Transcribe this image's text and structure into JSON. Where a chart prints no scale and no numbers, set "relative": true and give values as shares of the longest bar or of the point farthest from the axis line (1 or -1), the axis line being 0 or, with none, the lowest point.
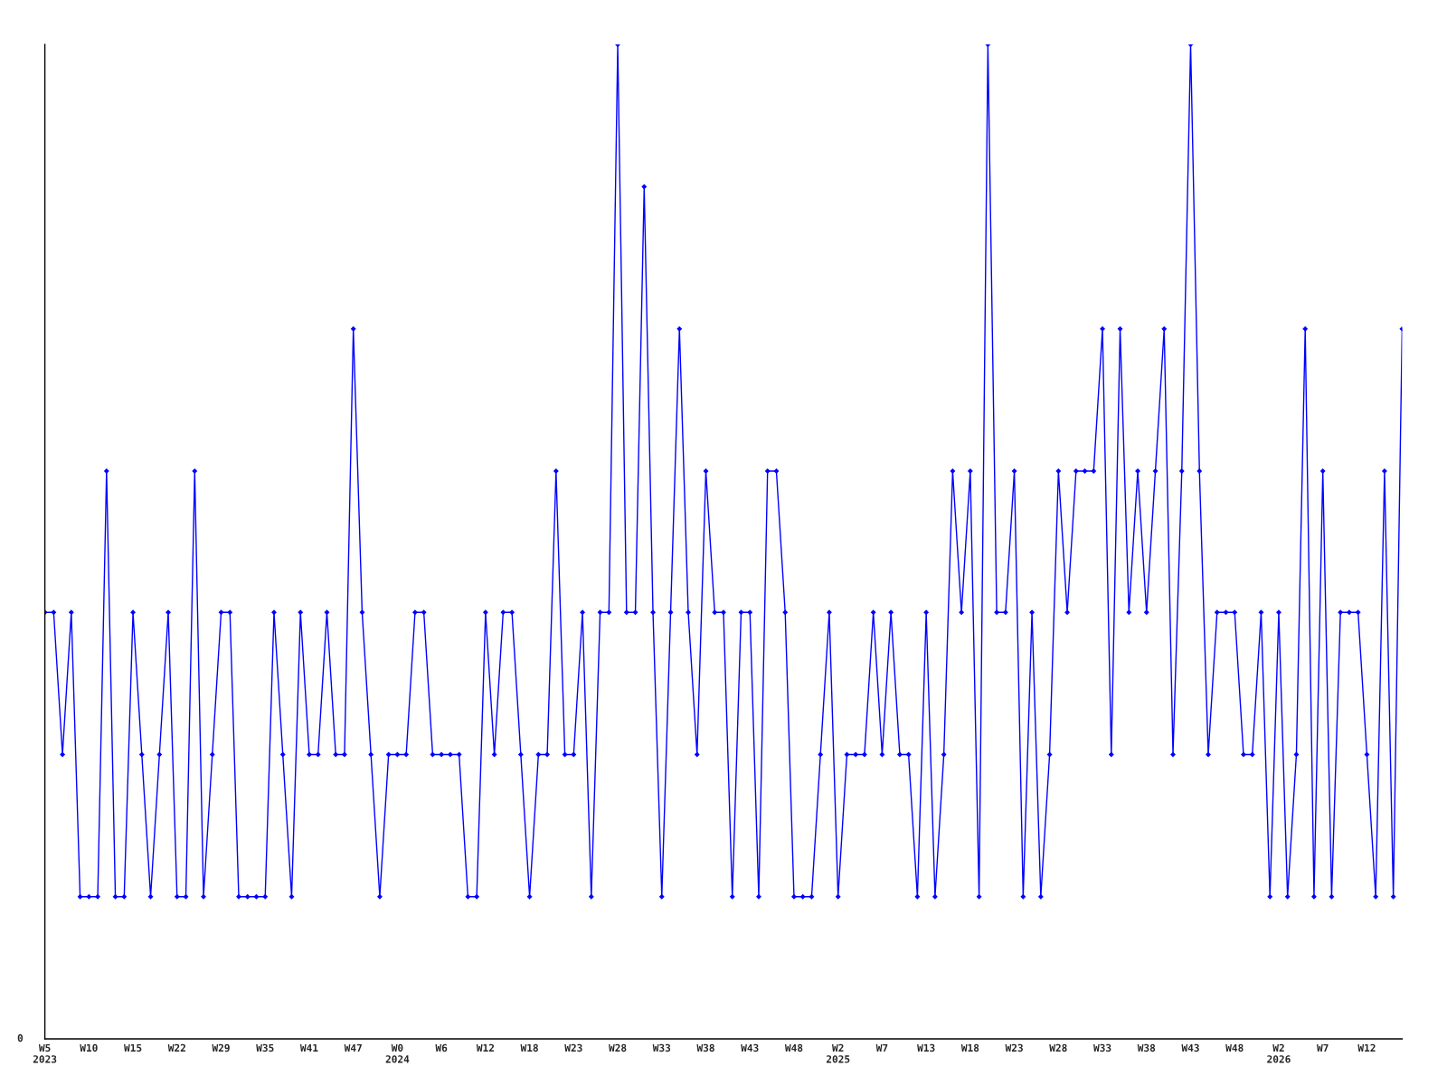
{
  "chart_data": {
    "type": "line",
    "relative": true,
    "categories": [
      "W5\n2023",
      null,
      null,
      null,
      null,
      "W10",
      null,
      null,
      null,
      null,
      "W15",
      null,
      null,
      null,
      null,
      "W22",
      null,
      null,
      null,
      null,
      "W29",
      null,
      null,
      null,
      null,
      "W35",
      null,
      null,
      null,
      null,
      "W41",
      null,
      null,
      null,
      null,
      "W47",
      null,
      null,
      null,
      null,
      "W0\n2024",
      null,
      null,
      null,
      null,
      "W6",
      null,
      null,
      null,
      null,
      "W12",
      null,
      null,
      null,
      null,
      "W18",
      null,
      null,
      null,
      null,
      "W23",
      null,
      null,
      null,
      null,
      "W28",
      null,
      null,
      null,
      null,
      "W33",
      null,
      null,
      null,
      null,
      "W38",
      null,
      null,
      null,
      null,
      "W43",
      null,
      null,
      null,
      null,
      "W48",
      null,
      null,
      null,
      null,
      "W2\n2025",
      null,
      null,
      null,
      null,
      "W7",
      null,
      null,
      null,
      null,
      "W13",
      null,
      null,
      null,
      null,
      "W18",
      null,
      null,
      null,
      null,
      "W23",
      null,
      null,
      null,
      null,
      "W28",
      null,
      null,
      null,
      null,
      "W33",
      null,
      null,
      null,
      null,
      "W38",
      null,
      null,
      null,
      null,
      "W43",
      null,
      null,
      null,
      null,
      "W48",
      null,
      null,
      null,
      null,
      "W2\n2026",
      null,
      null,
      null,
      null,
      "W7",
      null,
      null,
      null,
      null,
      "W12",
      null,
      null,
      null,
      null
    ],
    "series": [
      {
        "color": "#0000ff",
        "values": [
          0.429,
          0.429,
          0.286,
          0.429,
          0.143,
          0.143,
          0.143,
          0.571,
          0.143,
          0.143,
          0.429,
          0.286,
          0.143,
          0.286,
          0.429,
          0.143,
          0.143,
          0.571,
          0.143,
          0.286,
          0.429,
          0.429,
          0.143,
          0.143,
          0.143,
          0.143,
          0.429,
          0.286,
          0.143,
          0.429,
          0.286,
          0.286,
          0.429,
          0.286,
          0.286,
          0.714,
          0.429,
          0.286,
          0.143,
          0.286,
          0.286,
          0.286,
          0.429,
          0.429,
          0.286,
          0.286,
          0.286,
          0.286,
          0.143,
          0.143,
          0.429,
          0.286,
          0.429,
          0.429,
          0.286,
          0.143,
          0.286,
          0.286,
          0.571,
          0.286,
          0.286,
          0.429,
          0.143,
          0.429,
          0.429,
          1,
          0.429,
          0.429,
          0.857,
          0.429,
          0.143,
          0.429,
          0.714,
          0.429,
          0.286,
          0.571,
          0.429,
          0.429,
          0.143,
          0.429,
          0.429,
          0.143,
          0.571,
          0.571,
          0.429,
          0.143,
          0.143,
          0.143,
          0.286,
          0.429,
          0.143,
          0.286,
          0.286,
          0.286,
          0.429,
          0.286,
          0.429,
          0.286,
          0.286,
          0.143,
          0.429,
          0.143,
          0.286,
          0.571,
          0.429,
          0.571,
          0.143,
          1,
          0.429,
          0.429,
          0.571,
          0.143,
          0.429,
          0.143,
          0.286,
          0.571,
          0.429,
          0.571,
          0.571,
          0.571,
          0.714,
          0.286,
          0.714,
          0.429,
          0.571,
          0.429,
          0.571,
          0.714,
          0.286,
          0.571,
          1,
          0.571,
          0.286,
          0.429,
          0.429,
          0.429,
          0.286,
          0.286,
          0.429,
          0.143,
          0.429,
          0.143,
          0.286,
          0.714,
          0.143,
          0.571,
          0.143,
          0.429,
          0.429,
          0.429,
          0.286,
          0.143,
          0.571,
          0.143,
          0.714
        ]
      }
    ],
    "annotations": [
      "0"
    ],
    "marker": "diamond",
    "line_style": "solid",
    "grid": false,
    "legend": false
  }
}
